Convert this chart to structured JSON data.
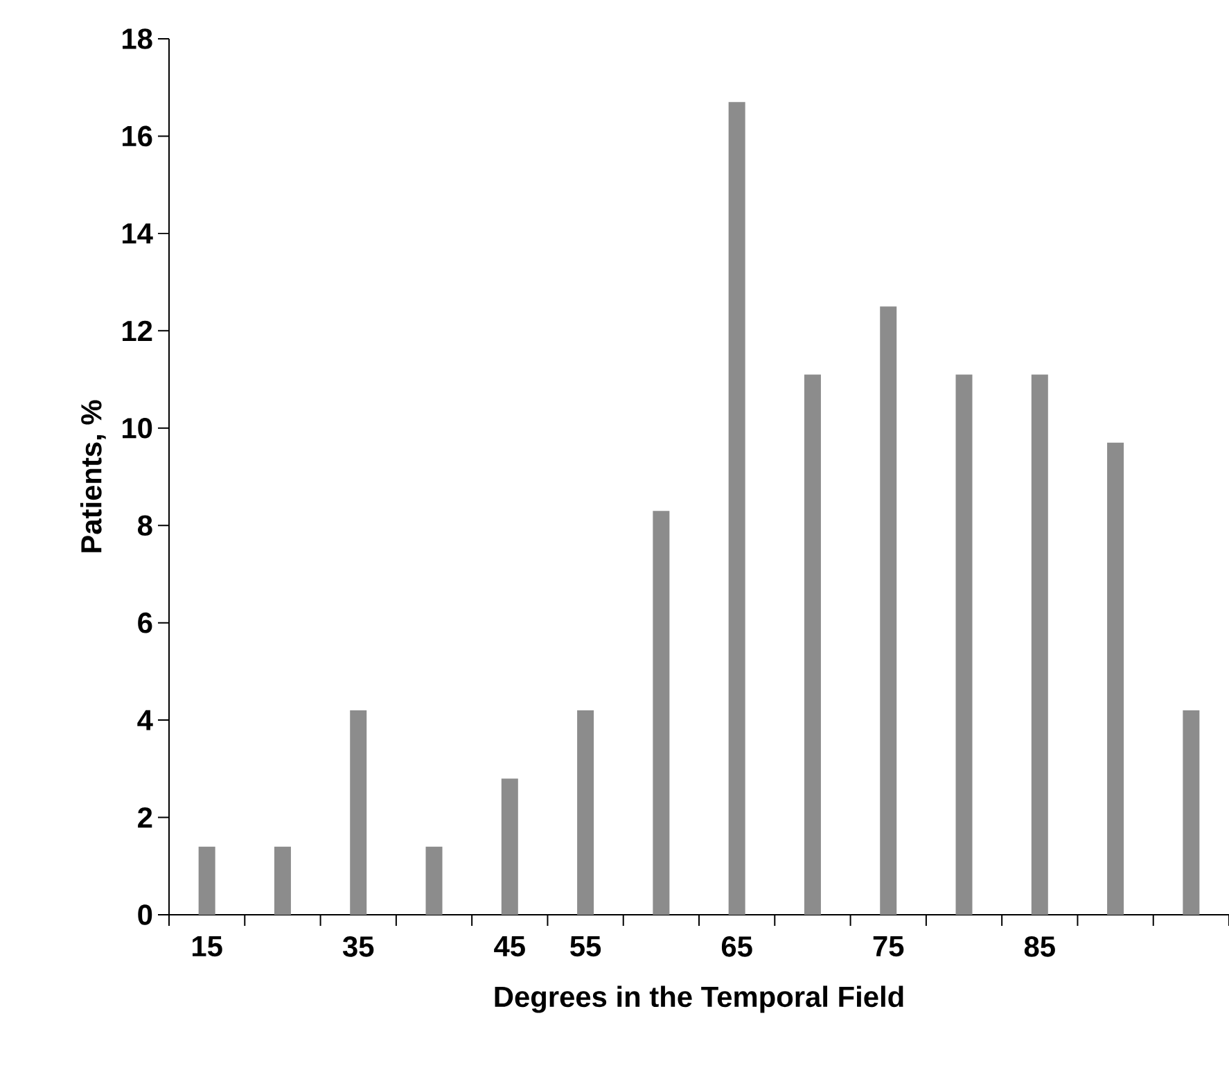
{
  "chart_data": {
    "type": "bar",
    "xlabel": "Degrees in the Temporal Field",
    "ylabel": "Patients, %",
    "categories": [
      "15",
      null,
      "35",
      null,
      "45",
      "55",
      null,
      "65",
      null,
      "75",
      null,
      "85",
      null,
      null
    ],
    "values": [
      1.4,
      1.4,
      4.2,
      1.4,
      2.8,
      4.2,
      8.3,
      16.7,
      11.1,
      12.5,
      11.1,
      11.1,
      9.7,
      4.2
    ],
    "color": "#8c8c8c",
    "ylim": [
      0,
      18
    ],
    "yticks": [
      0,
      2,
      4,
      6,
      8,
      10,
      12,
      14,
      16,
      18
    ]
  }
}
